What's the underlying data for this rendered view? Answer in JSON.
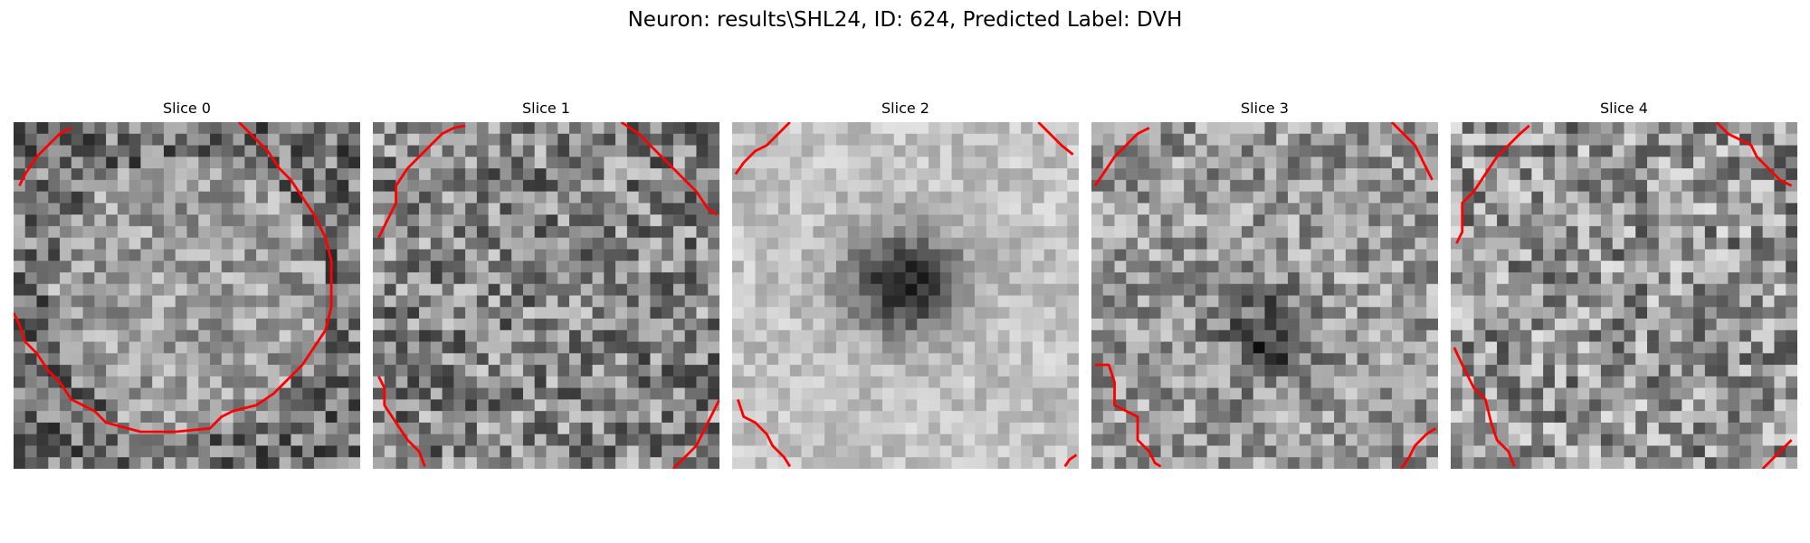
{
  "figure": {
    "title": "Neuron: results\\SHL24, ID: 624, Predicted Label: DVH"
  },
  "slices": [
    {
      "title": "Slice 0",
      "seed": 11,
      "pattern": "ring",
      "base": 0.56
    },
    {
      "title": "Slice 1",
      "seed": 23,
      "pattern": "noise",
      "base": 0.52
    },
    {
      "title": "Slice 2",
      "seed": 37,
      "pattern": "dark-blob",
      "base": 0.74
    },
    {
      "title": "Slice 3",
      "seed": 41,
      "pattern": "faint-blob",
      "base": 0.62
    },
    {
      "title": "Slice 4",
      "seed": 53,
      "pattern": "noise",
      "base": 0.58
    }
  ],
  "contour_color": "#ff0000",
  "grid_size": 30
}
